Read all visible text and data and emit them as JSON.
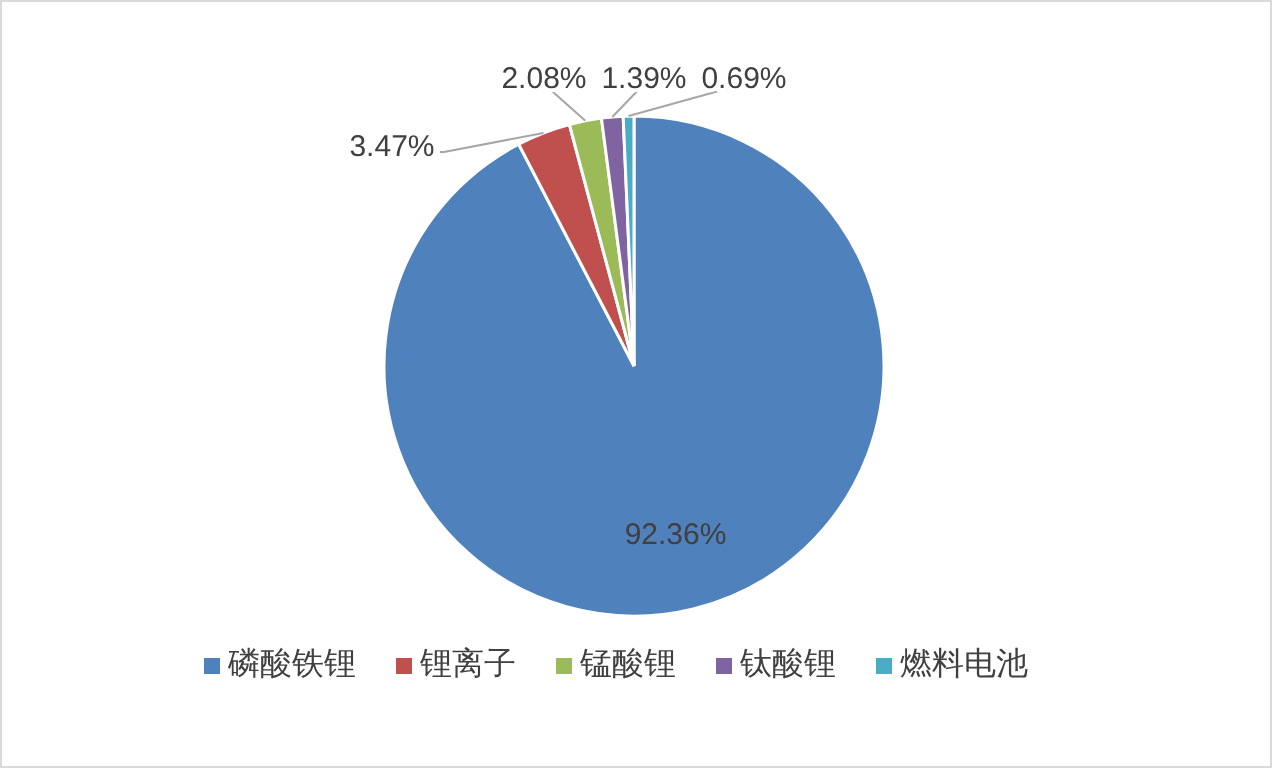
{
  "chart_data": {
    "type": "pie",
    "categories": [
      "磷酸铁锂",
      "锂离子",
      "锰酸锂",
      "钛酸锂",
      "燃料电池"
    ],
    "values": [
      92.36,
      3.47,
      2.08,
      1.39,
      0.69
    ],
    "colors": [
      "#4f81bd",
      "#c0504d",
      "#9bbb59",
      "#8064a2",
      "#4bacc6"
    ],
    "value_labels": [
      "92.36%",
      "3.47%",
      "2.08%",
      "1.39%",
      "0.69%"
    ],
    "legend": "bottom"
  }
}
